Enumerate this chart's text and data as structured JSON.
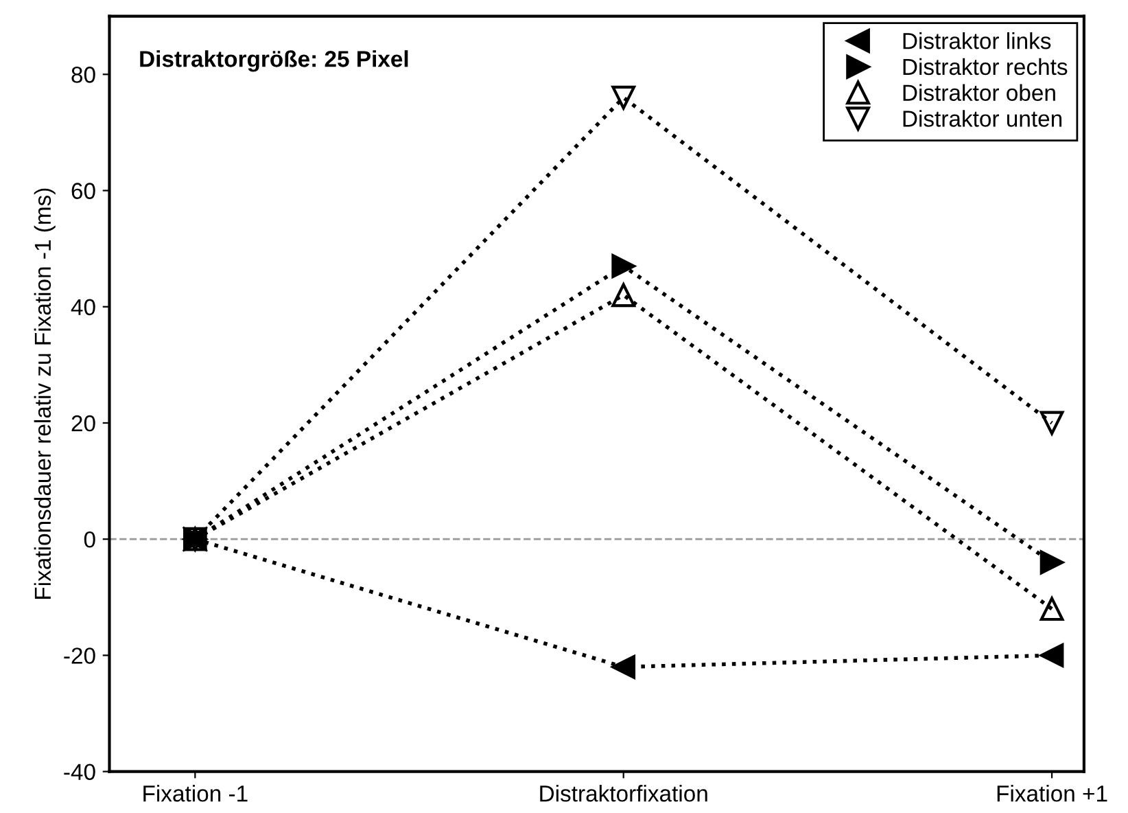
{
  "chart_data": {
    "type": "line",
    "ylabel": "Fixationsdauer relativ zu Fixation -1 (ms)",
    "categories": [
      "Fixation -1",
      "Distraktorfixation",
      "Fixation +1"
    ],
    "series": [
      {
        "name": "Distraktor links",
        "color": "#000000",
        "values": [
          0,
          -22,
          -20
        ]
      },
      {
        "name": "Distraktor rechts",
        "color": "#000000",
        "values": [
          0,
          47,
          -4
        ]
      },
      {
        "name": "Distraktor oben",
        "color": "#000000",
        "values": [
          0,
          42,
          -12
        ]
      },
      {
        "name": "Distraktor unten",
        "color": "#000000",
        "values": [
          0,
          76,
          20
        ]
      }
    ],
    "ylim": [
      -40,
      90
    ],
    "yticks": [
      -40,
      -20,
      0,
      20,
      40,
      60,
      80
    ],
    "ref_lines": [
      {
        "axis": "y",
        "value": 0,
        "color": "#999999",
        "line_style": "dashed"
      }
    ],
    "annotations": [
      "Distraktorgröße: 25 Pixel"
    ],
    "line_style": "dotted",
    "marker": "triangle",
    "legend": "top right",
    "grid": false
  }
}
